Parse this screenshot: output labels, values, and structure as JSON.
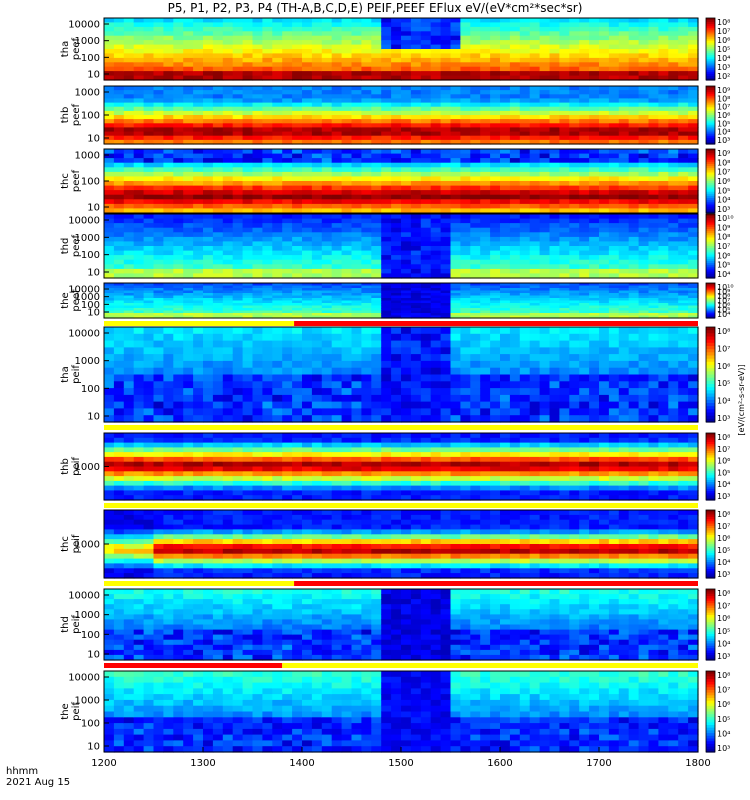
{
  "chart_data": {
    "type": "heatmap",
    "title": "P5, P1, P2, P3, P4 (TH-A,B,C,D,E) PEIF,PEEF EFlux eV/(eV*cm²*sec*sr)",
    "x_label_line1": "hhmm",
    "x_label_line2": "2021 Aug 15",
    "x_range": [
      1200,
      1800
    ],
    "x_ticks": [
      "1200",
      "1300",
      "1400",
      "1500",
      "1600",
      "1700",
      "1800"
    ],
    "colorbar_label": "[eV/(cm²-s-sr-eV)]",
    "panels": [
      {
        "probe": "tha",
        "product": "peef",
        "ylabel": "tha\npeef",
        "yticks": [
          "10000",
          "1000",
          "100",
          "10"
        ],
        "ylog": true,
        "cbar_ticks": [
          "10⁸",
          "10⁷",
          "10⁶",
          "10⁵",
          "10⁴",
          "10³",
          "10²"
        ],
        "bar_below": "none"
      },
      {
        "probe": "thb",
        "product": "peef",
        "ylabel": "thb\npeef",
        "yticks": [
          "1000",
          "100",
          "10"
        ],
        "ylog": true,
        "cbar_ticks": [
          "10⁹",
          "10⁸",
          "10⁷",
          "10⁶",
          "10⁵",
          "10⁴",
          "10³"
        ],
        "bar_below": "none"
      },
      {
        "probe": "thc",
        "product": "peef",
        "ylabel": "thc\npeef",
        "yticks": [
          "1000",
          "100",
          "10"
        ],
        "ylog": true,
        "cbar_ticks": [
          "10⁹",
          "10⁸",
          "10⁷",
          "10⁶",
          "10⁵",
          "10⁴",
          "10³"
        ],
        "bar_below": "none"
      },
      {
        "probe": "thd",
        "product": "peef",
        "ylabel": "thd\npeef",
        "yticks": [
          "10000",
          "1000",
          "100",
          "10"
        ],
        "ylog": true,
        "cbar_ticks": [
          "10¹⁰",
          "10⁹",
          "10⁸",
          "10⁷",
          "10⁶",
          "10⁵",
          "10⁴"
        ],
        "bar_below": "none"
      },
      {
        "probe": "the",
        "product": "peef",
        "ylabel": "the\npeef",
        "yticks": [
          "10000",
          "1000",
          "100",
          "10"
        ],
        "ylog": true,
        "cbar_ticks": [
          "10¹⁰",
          "10⁹",
          "10⁸",
          "10⁷",
          "10⁶",
          "10⁵",
          "10⁴"
        ],
        "bar_below": "yellow-red"
      },
      {
        "probe": "tha",
        "product": "peif",
        "ylabel": "tha\npeif",
        "yticks": [
          "10000",
          "1000",
          "100",
          "10"
        ],
        "ylog": true,
        "cbar_ticks": [
          "10⁸",
          "10⁷",
          "10⁶",
          "10⁵",
          "10⁴",
          "10³"
        ],
        "bar_below": "yellow"
      },
      {
        "probe": "thb",
        "product": "peif",
        "ylabel": "thb\npeif",
        "yticks": [
          "1000"
        ],
        "ylog": true,
        "cbar_ticks": [
          "10⁸",
          "10⁷",
          "10⁶",
          "10⁵",
          "10⁴",
          "10³"
        ],
        "bar_below": "yellow"
      },
      {
        "probe": "thc",
        "product": "peif",
        "ylabel": "thc\npeif",
        "yticks": [
          "1000"
        ],
        "ylog": true,
        "cbar_ticks": [
          "10⁸",
          "10⁷",
          "10⁶",
          "10⁵",
          "10⁴",
          "10³"
        ],
        "bar_below": "yellow-red"
      },
      {
        "probe": "thd",
        "product": "peif",
        "ylabel": "thd\npeif",
        "yticks": [
          "10000",
          "1000",
          "100",
          "10"
        ],
        "ylog": true,
        "cbar_ticks": [
          "10⁸",
          "10⁷",
          "10⁶",
          "10⁵",
          "10⁴",
          "10³"
        ],
        "bar_below": "red-yellow"
      },
      {
        "probe": "the",
        "product": "peif",
        "ylabel": "the\npeif",
        "yticks": [
          "10000",
          "1000",
          "100",
          "10"
        ],
        "ylog": true,
        "cbar_ticks": [
          "10⁸",
          "10⁷",
          "10⁶",
          "10⁵",
          "10⁴",
          "10³"
        ],
        "bar_below": "none"
      }
    ]
  }
}
